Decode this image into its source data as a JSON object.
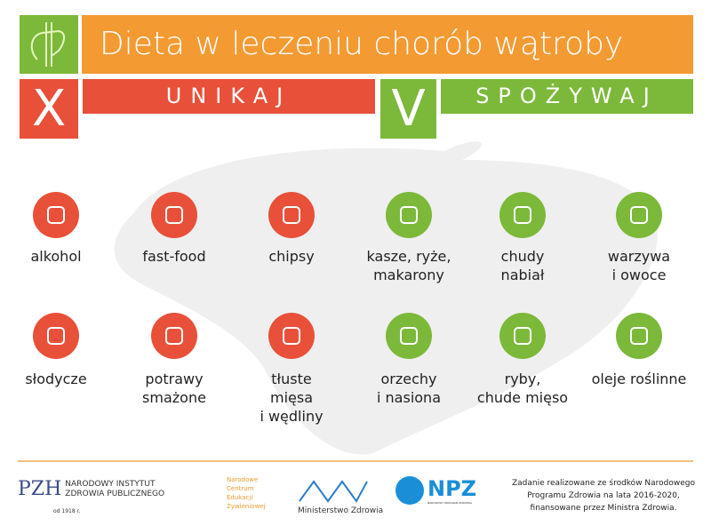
{
  "header": {
    "title": "Dieta w leczeniu chorób wątroby",
    "avoid_label": "UNIKAJ",
    "eat_label": "SPOŻYWAJ",
    "avoid_mark": "X",
    "eat_mark": "V"
  },
  "colors": {
    "orange": "#f39a32",
    "red": "#e8503a",
    "green": "#7cb83a"
  },
  "avoid": [
    {
      "label": "alkohol",
      "icon": "wine-bottle-icon"
    },
    {
      "label": "fast-food",
      "icon": "burger-icon"
    },
    {
      "label": "chipsy",
      "icon": "chips-bag-icon"
    },
    {
      "label": "słodycze",
      "icon": "waffle-icon"
    },
    {
      "label": "potrawy\nsmażone",
      "icon": "frying-pan-icon"
    },
    {
      "label": "tłuste\nmięsa\ni wędliny",
      "icon": "steak-icon"
    }
  ],
  "eat": [
    {
      "label": "kasze, ryże,\nmakarony",
      "icon": "grain-pack-icon"
    },
    {
      "label": "chudy\nnabiał",
      "icon": "cheese-container-icon"
    },
    {
      "label": "warzywa\ni owoce",
      "icon": "fruit-vegetable-icon"
    },
    {
      "label": "orzechy\ni nasiona",
      "icon": "nuts-icon"
    },
    {
      "label": "ryby,\nchude mięso",
      "icon": "fish-icon"
    },
    {
      "label": "oleje roślinne",
      "icon": "oil-bottle-icon"
    }
  ],
  "footer": {
    "pzh": {
      "abbr": "PZH",
      "line1": "NARODOWY INSTYTUT",
      "line2": "ZDROWIA PUBLICZNEGO",
      "since": "od 1918 r."
    },
    "ncez": {
      "lines": "Narodowe\nCentrum\nEdukacji\nŻywieniowej"
    },
    "mz": {
      "name": "Ministerstwo Zdrowia"
    },
    "npz": {
      "abbr": "NPZ",
      "sub": "NARODOWY PROGRAM ZDROWIA"
    },
    "note": "Zadanie realizowane ze środków Narodowego Programu Zdrowia na lata 2016-2020, finansowane przez Ministra Zdrowia."
  }
}
